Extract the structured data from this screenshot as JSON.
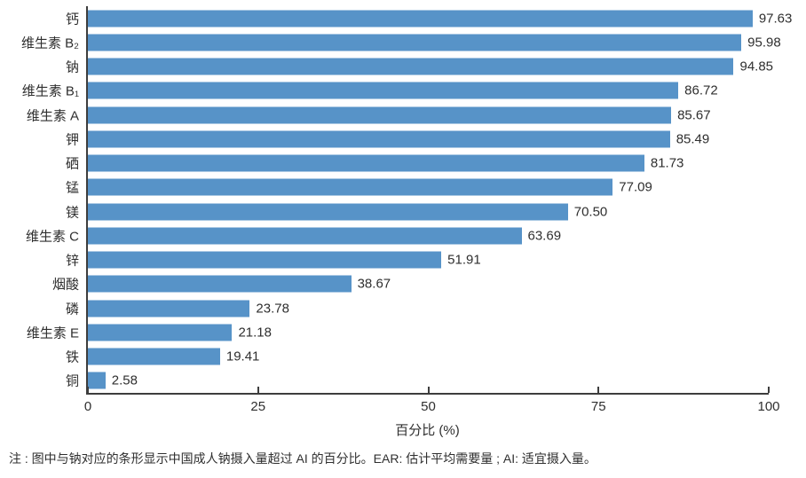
{
  "chart_data": {
    "type": "bar",
    "orientation": "horizontal",
    "categories": [
      "钙",
      "维生素 B₂",
      "钠",
      "维生素 B₁",
      "维生素 A",
      "钾",
      "硒",
      "锰",
      "镁",
      "维生素 C",
      "锌",
      "烟酸",
      "磷",
      "维生素 E",
      "铁",
      "铜"
    ],
    "values": [
      97.63,
      95.98,
      94.85,
      86.72,
      85.67,
      85.49,
      81.73,
      77.09,
      70.5,
      63.69,
      51.91,
      38.67,
      23.78,
      21.18,
      19.41,
      2.58
    ],
    "value_labels": [
      "97.63",
      "95.98",
      "94.85",
      "86.72",
      "85.67",
      "85.49",
      "81.73",
      "77.09",
      "70.50",
      "63.69",
      "51.91",
      "38.67",
      "23.78",
      "21.18",
      "19.41",
      "2.58"
    ],
    "xlabel": "百分比 (%)",
    "x_tick_labels": [
      "0",
      "25",
      "50",
      "75",
      "100"
    ],
    "x_tick_values": [
      0,
      25,
      50,
      75,
      100
    ],
    "xlim": [
      0,
      100
    ],
    "bar_color": "#5793c8",
    "axis_color": "#3d3d3d",
    "grid": false,
    "legend_position": "none"
  },
  "note": "注 : 图中与钠对应的条形显示中国成人钠摄入量超过 AI 的百分比。EAR: 估计平均需要量 ; AI: 适宜摄入量。"
}
